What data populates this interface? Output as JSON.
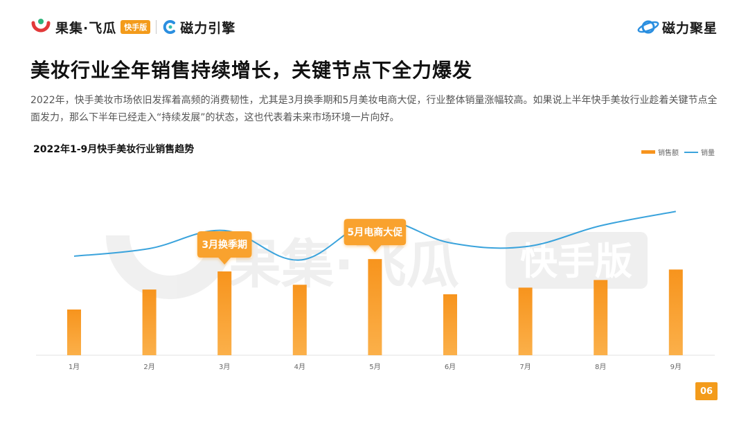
{
  "header": {
    "brand_name": "果集·飞瓜",
    "brand_tag": "快手版",
    "partner_name": "磁力引擎",
    "right_brand_name": "磁力聚星"
  },
  "title": "美妆行业全年销售持续增长，关键节点下全力爆发",
  "description": "2022年，快手美妆市场依旧发挥着高频的消费韧性，尤其是3月换季期和5月美妆电商大促，行业整体销量涨幅较高。如果说上半年快手美妆行业趁着关键节点全面发力，那么下半年已经走入“持续发展”的状态，这也代表着未来市场环境一片向好。",
  "watermark": {
    "brand": "果集·飞瓜",
    "tag": "快手版"
  },
  "page_number": "06",
  "chart_data": {
    "type": "bar",
    "title": "2022年1-9月快手美妆行业销售趋势",
    "categories": [
      "1月",
      "2月",
      "3月",
      "4月",
      "5月",
      "6月",
      "7月",
      "8月",
      "9月"
    ],
    "series": [
      {
        "name": "销售额",
        "type": "bar",
        "color": "#f7941d",
        "values": [
          48,
          69,
          88,
          74,
          101,
          64,
          71,
          79,
          90
        ]
      },
      {
        "name": "销量",
        "type": "line",
        "color": "#3aa3dc",
        "values": [
          104,
          112,
          131,
          100,
          142,
          118,
          114,
          136,
          151
        ]
      }
    ],
    "ylim": [
      0,
      200
    ],
    "annotations": [
      {
        "category": "3月",
        "text": "3月换季期"
      },
      {
        "category": "5月",
        "text": "5月电商大促"
      }
    ],
    "grid": false,
    "legend_position": "top-right"
  }
}
